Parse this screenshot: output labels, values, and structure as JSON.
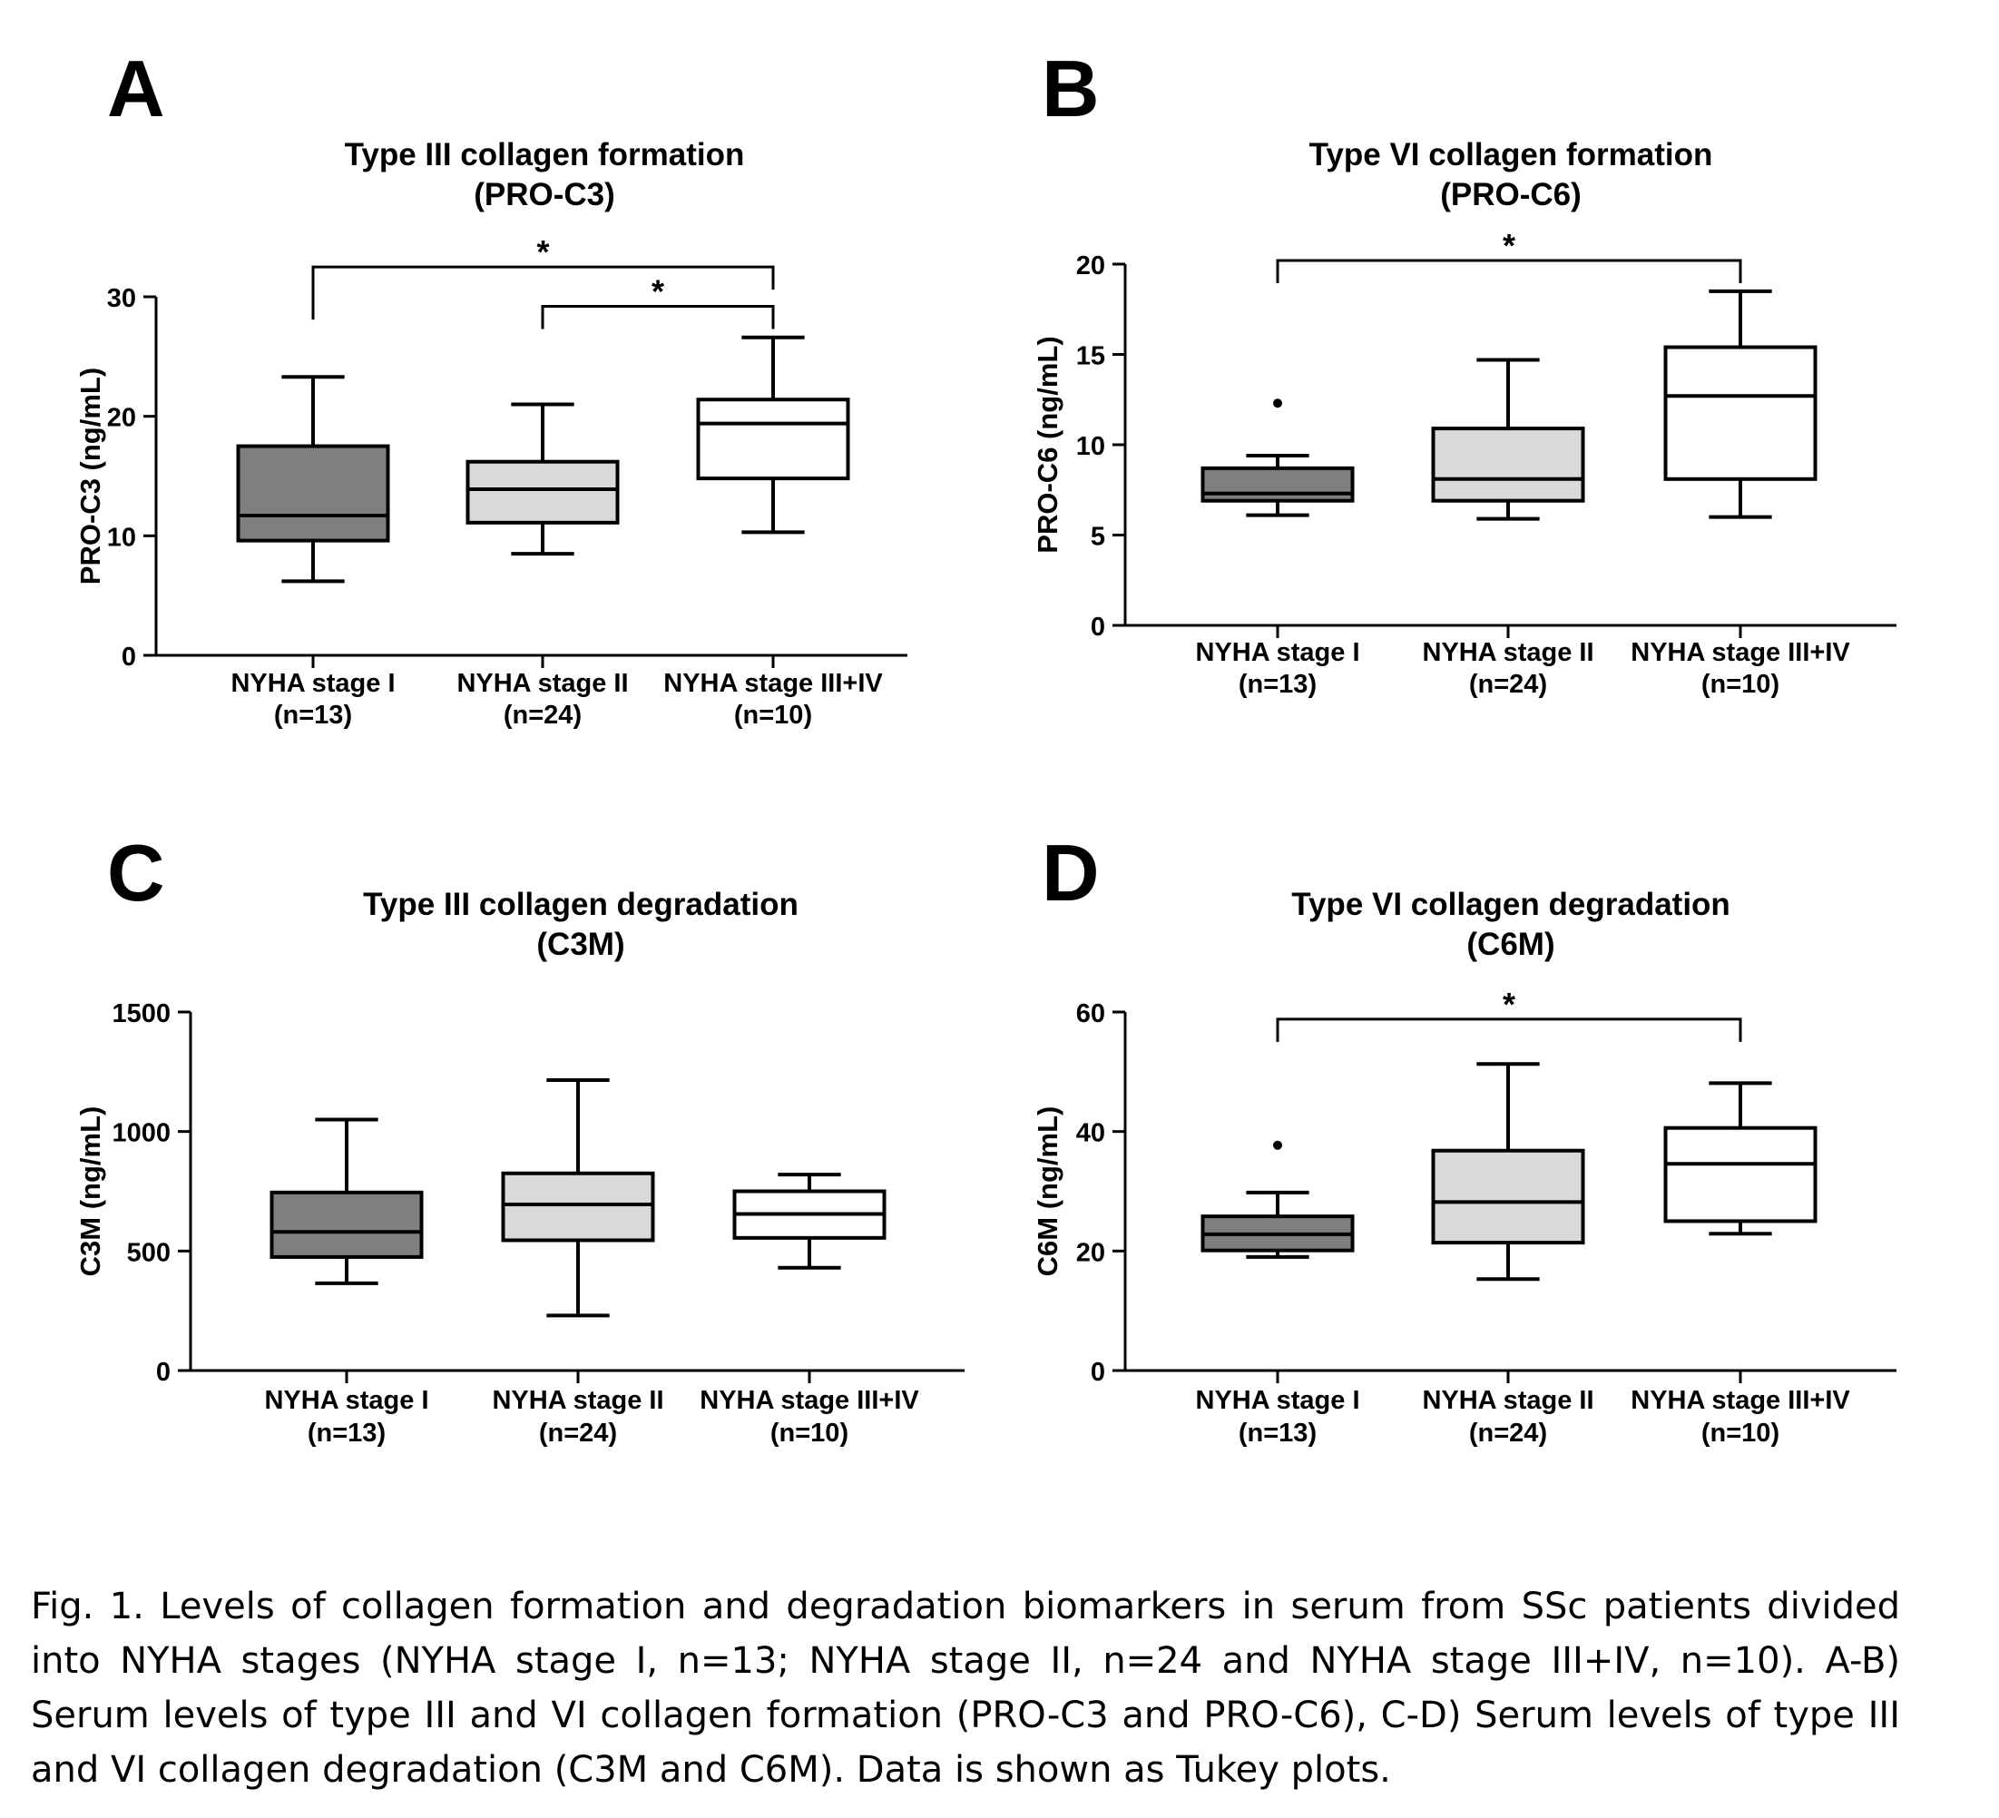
{
  "chart_data": [
    {
      "type": "box",
      "panel_label": "A",
      "title": [
        "Type III collagen formation",
        "(PRO-C3)"
      ],
      "ylabel": "PRO-C3 (ng/mL)",
      "ylim": [
        0,
        30
      ],
      "yticks": [
        0,
        10,
        20,
        30
      ],
      "categories": [
        [
          "NYHA stage I",
          "(n=13)"
        ],
        [
          "NYHA stage II",
          "(n=24)"
        ],
        [
          "NYHA stage III+IV",
          "(n=10)"
        ]
      ],
      "fills": [
        "#7f7f7f",
        "#d9d9d9",
        "#ffffff"
      ],
      "boxes": [
        {
          "min": 6.2,
          "q1": 9.6,
          "median": 11.7,
          "q3": 17.5,
          "max": 23.3,
          "outliers": []
        },
        {
          "min": 8.5,
          "q1": 11.1,
          "median": 13.9,
          "q3": 16.2,
          "max": 21.0,
          "outliers": []
        },
        {
          "min": 10.3,
          "q1": 14.8,
          "median": 19.4,
          "q3": 21.4,
          "max": 26.6,
          "outliers": []
        }
      ],
      "brackets": [
        {
          "from": 0,
          "to": 2,
          "label": "*",
          "y": 32.5
        },
        {
          "from": 1,
          "to": 2,
          "label": "*",
          "y": 29.2
        }
      ]
    },
    {
      "type": "box",
      "panel_label": "B",
      "title": [
        "Type VI collagen formation",
        "(PRO-C6)"
      ],
      "ylabel": "PRO-C6 (ng/mL)",
      "ylim": [
        0,
        20
      ],
      "yticks": [
        0,
        5,
        10,
        15,
        20
      ],
      "categories": [
        [
          "NYHA stage I",
          "(n=13)"
        ],
        [
          "NYHA stage II",
          "(n=24)"
        ],
        [
          "NYHA stage III+IV",
          "(n=10)"
        ]
      ],
      "fills": [
        "#7f7f7f",
        "#d9d9d9",
        "#ffffff"
      ],
      "boxes": [
        {
          "min": 6.1,
          "q1": 6.9,
          "median": 7.3,
          "q3": 8.7,
          "max": 9.4,
          "outliers": [
            12.3
          ]
        },
        {
          "min": 5.9,
          "q1": 6.9,
          "median": 8.1,
          "q3": 10.9,
          "max": 14.7,
          "outliers": []
        },
        {
          "min": 6.0,
          "q1": 8.1,
          "median": 12.7,
          "q3": 15.4,
          "max": 18.5,
          "outliers": []
        }
      ],
      "brackets": [
        {
          "from": 0,
          "to": 2,
          "label": "*",
          "y": 20.2
        }
      ]
    },
    {
      "type": "box",
      "panel_label": "C",
      "title": [
        "Type III collagen degradation",
        "(C3M)"
      ],
      "ylabel": "C3M (ng/mL)",
      "ylim": [
        0,
        1500
      ],
      "yticks": [
        0,
        500,
        1000,
        1500
      ],
      "categories": [
        [
          "NYHA stage I",
          "(n=13)"
        ],
        [
          "NYHA stage II",
          "(n=24)"
        ],
        [
          "NYHA stage III+IV",
          "(n=10)"
        ]
      ],
      "fills": [
        "#7f7f7f",
        "#d9d9d9",
        "#ffffff"
      ],
      "boxes": [
        {
          "min": 365,
          "q1": 475,
          "median": 580,
          "q3": 745,
          "max": 1050,
          "outliers": []
        },
        {
          "min": 230,
          "q1": 545,
          "median": 695,
          "q3": 825,
          "max": 1215,
          "outliers": []
        },
        {
          "min": 430,
          "q1": 555,
          "median": 655,
          "q3": 750,
          "max": 820,
          "outliers": []
        }
      ],
      "brackets": []
    },
    {
      "type": "box",
      "panel_label": "D",
      "title": [
        "Type VI collagen degradation",
        "(C6M)"
      ],
      "ylabel": "C6M (ng/mL)",
      "ylim": [
        0,
        60
      ],
      "yticks": [
        0,
        20,
        40,
        60
      ],
      "categories": [
        [
          "NYHA stage I",
          "(n=13)"
        ],
        [
          "NYHA stage II",
          "(n=24)"
        ],
        [
          "NYHA stage III+IV",
          "(n=10)"
        ]
      ],
      "fills": [
        "#7f7f7f",
        "#d9d9d9",
        "#ffffff"
      ],
      "boxes": [
        {
          "min": 19.0,
          "q1": 20.1,
          "median": 22.8,
          "q3": 25.8,
          "max": 29.8,
          "outliers": [
            37.7
          ]
        },
        {
          "min": 15.3,
          "q1": 21.4,
          "median": 28.2,
          "q3": 36.8,
          "max": 51.3,
          "outliers": []
        },
        {
          "min": 22.9,
          "q1": 25.0,
          "median": 34.6,
          "q3": 40.6,
          "max": 48.1,
          "outliers": []
        }
      ],
      "brackets": [
        {
          "from": 0,
          "to": 2,
          "label": "*",
          "y": 58.8
        }
      ]
    }
  ],
  "caption": "Fig. 1. Levels of collagen formation and degradation biomarkers in serum from SSc patients divided into NYHA stages (NYHA stage I, n=13; NYHA stage II, n=24 and NYHA stage III+IV, n=10). A-B) Serum levels of type III and VI collagen formation (PRO-C3 and PRO-C6), C-D) Serum levels of type III and VI collagen degradation (C3M and C6M). Data is shown as Tukey plots."
}
